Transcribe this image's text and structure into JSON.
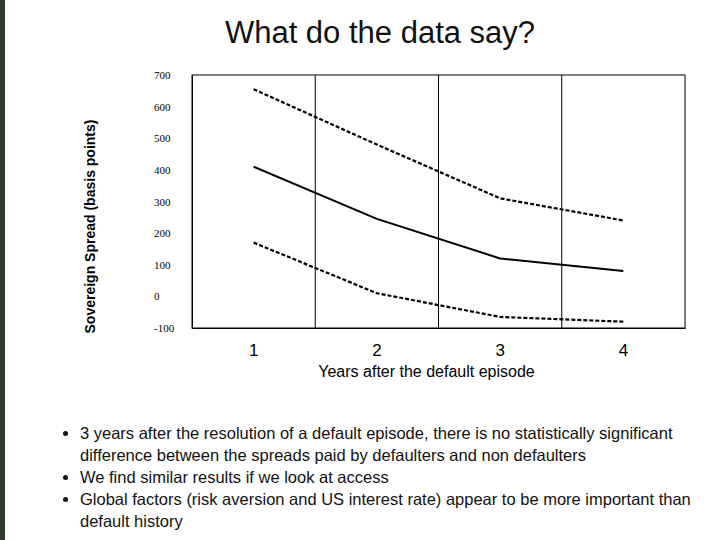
{
  "chart_data": {
    "type": "line",
    "title": "What do the data say?",
    "x_label": "Years after the default episode",
    "y_label": "Sovereign Spread (basis points)",
    "categories": [
      "1",
      "2",
      "3",
      "4"
    ],
    "series": [
      {
        "color": "#000000",
        "line_style": "dashed",
        "values": [
          655,
          480,
          310,
          240
        ]
      },
      {
        "color": "#000000",
        "line_style": "solid",
        "values": [
          410,
          245,
          120,
          80
        ]
      },
      {
        "color": "#000000",
        "line_style": "dashed",
        "values": [
          170,
          10,
          -65,
          -80
        ]
      }
    ],
    "ylim": [
      -100,
      700
    ],
    "yticks": [
      -100,
      0,
      100,
      200,
      300,
      400,
      500,
      600,
      700
    ],
    "grid": true,
    "notes": [
      "3 years after the resolution of a default episode, there is no statistically significant difference between the spreads paid by defaulters and non defaulters",
      "We find similar results if we look at access",
      "Global factors (risk aversion and US interest rate) appear to be more important than default history"
    ]
  }
}
